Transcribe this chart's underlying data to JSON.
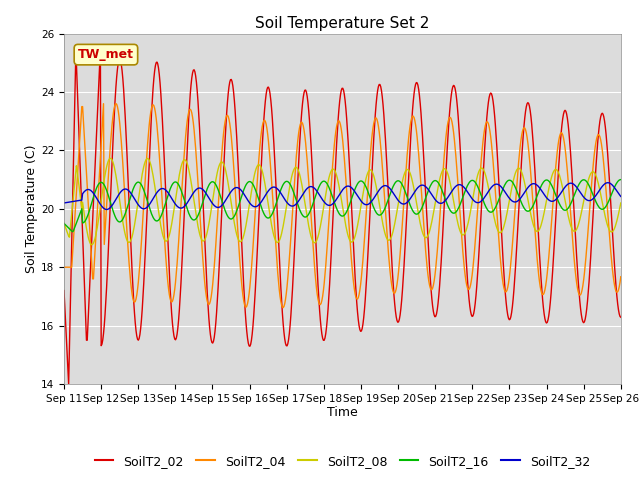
{
  "title": "Soil Temperature Set 2",
  "xlabel": "Time",
  "ylabel": "Soil Temperature (C)",
  "ylim": [
    14,
    26
  ],
  "background_color": "#dcdcdc",
  "fig_background": "#ffffff",
  "annotation_text": "TW_met",
  "annotation_bg": "#ffffcc",
  "annotation_border": "#aa8800",
  "annotation_text_color": "#cc0000",
  "series": [
    "SoilT2_02",
    "SoilT2_04",
    "SoilT2_08",
    "SoilT2_16",
    "SoilT2_32"
  ],
  "colors": [
    "#dd0000",
    "#ff8800",
    "#cccc00",
    "#00bb00",
    "#0000cc"
  ],
  "tick_labels": [
    "Sep 11",
    "Sep 12",
    "Sep 13",
    "Sep 14",
    "Sep 15",
    "Sep 16",
    "Sep 17",
    "Sep 18",
    "Sep 19",
    "Sep 20",
    "Sep 21",
    "Sep 22",
    "Sep 23",
    "Sep 24",
    "Sep 25",
    "Sep 26"
  ],
  "yticks": [
    14,
    16,
    18,
    20,
    22,
    24,
    26
  ],
  "grid_color": "#ffffff",
  "title_fontsize": 11,
  "axis_label_fontsize": 9,
  "tick_fontsize": 7.5,
  "legend_fontsize": 9
}
